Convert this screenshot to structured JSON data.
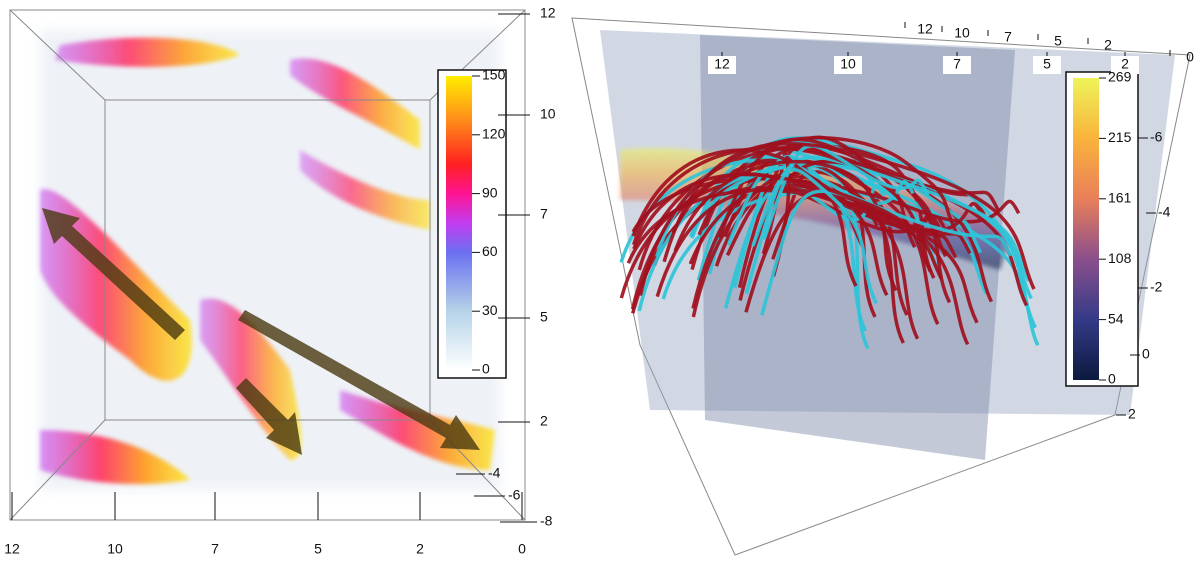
{
  "left_panel": {
    "x_axis_labels": [
      "12",
      "10",
      "7",
      "5",
      "2",
      "0"
    ],
    "y_axis_labels": [
      "12",
      "10",
      "7",
      "5",
      "2"
    ],
    "depth_axis_labels": [
      "-4",
      "-6",
      "-8"
    ],
    "colorbar_labels": [
      "150",
      "120",
      "90",
      "60",
      "30",
      "0"
    ]
  },
  "right_panel": {
    "front_axis_labels": [
      "12",
      "10",
      "7",
      "5",
      "2"
    ],
    "back_axis_labels": [
      "12",
      "10",
      "7",
      "5",
      "2",
      "0"
    ],
    "side_axis_labels": [
      "-6",
      "-4",
      "-2",
      "0",
      "2"
    ],
    "colorbar_labels": [
      "269",
      "215",
      "161",
      "108",
      "54",
      "0"
    ]
  }
}
